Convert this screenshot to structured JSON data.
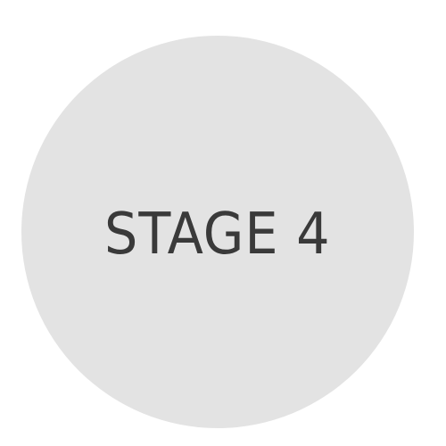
{
  "stage": {
    "label": "STAGE 4",
    "circle_color": "#e3e3e3",
    "text_color": "#3a3a3a"
  }
}
